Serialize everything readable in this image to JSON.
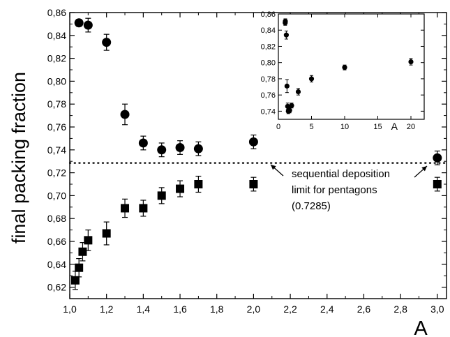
{
  "chart_data": {
    "type": "scatter",
    "xlabel": "A",
    "ylabel": "final packing fraction",
    "xlim": [
      1.0,
      3.05
    ],
    "ylim": [
      0.61,
      0.86
    ],
    "x_ticks": [
      "1,0",
      "1,2",
      "1,4",
      "1,6",
      "1,8",
      "2,0",
      "2,2",
      "2,4",
      "2,6",
      "2,8",
      "3,0"
    ],
    "y_ticks": [
      "0,62",
      "0,64",
      "0,66",
      "0,68",
      "0,70",
      "0,72",
      "0,74",
      "0,76",
      "0,78",
      "0,80",
      "0,82",
      "0,84",
      "0,86"
    ],
    "series": [
      {
        "marker": "circle",
        "points": [
          {
            "x": 1.05,
            "y": 0.851,
            "err": 0.003
          },
          {
            "x": 1.1,
            "y": 0.849,
            "err": 0.006
          },
          {
            "x": 1.2,
            "y": 0.834,
            "err": 0.007
          },
          {
            "x": 1.3,
            "y": 0.771,
            "err": 0.009
          },
          {
            "x": 1.4,
            "y": 0.746,
            "err": 0.006
          },
          {
            "x": 1.5,
            "y": 0.74,
            "err": 0.006
          },
          {
            "x": 1.6,
            "y": 0.742,
            "err": 0.006
          },
          {
            "x": 1.7,
            "y": 0.741,
            "err": 0.006
          },
          {
            "x": 2.0,
            "y": 0.747,
            "err": 0.006
          },
          {
            "x": 3.0,
            "y": 0.733,
            "err": 0.006
          }
        ]
      },
      {
        "marker": "square",
        "points": [
          {
            "x": 1.03,
            "y": 0.626,
            "err": 0.008
          },
          {
            "x": 1.05,
            "y": 0.637,
            "err": 0.008
          },
          {
            "x": 1.07,
            "y": 0.651,
            "err": 0.008
          },
          {
            "x": 1.1,
            "y": 0.661,
            "err": 0.009
          },
          {
            "x": 1.2,
            "y": 0.667,
            "err": 0.01
          },
          {
            "x": 1.3,
            "y": 0.689,
            "err": 0.008
          },
          {
            "x": 1.4,
            "y": 0.689,
            "err": 0.007
          },
          {
            "x": 1.5,
            "y": 0.7,
            "err": 0.007
          },
          {
            "x": 1.6,
            "y": 0.706,
            "err": 0.007
          },
          {
            "x": 1.7,
            "y": 0.71,
            "err": 0.007
          },
          {
            "x": 2.0,
            "y": 0.71,
            "err": 0.006
          },
          {
            "x": 3.0,
            "y": 0.71,
            "err": 0.006
          }
        ]
      }
    ],
    "reference_line": {
      "y": 0.7285,
      "style": "dotted"
    },
    "annotation": [
      "sequential deposition",
      "limit for pentagons",
      "(0.7285)"
    ],
    "inset": {
      "type": "scatter",
      "xlabel": "A",
      "xlim": [
        0,
        22
      ],
      "ylim": [
        0.73,
        0.86
      ],
      "x_ticks": [
        "0",
        "5",
        "10",
        "15",
        "20"
      ],
      "y_ticks": [
        "0,74",
        "0,76",
        "0,78",
        "0,80",
        "0,82",
        "0,84",
        "0,86"
      ],
      "points": [
        {
          "x": 1.03,
          "y": 0.849,
          "err": 0.003
        },
        {
          "x": 1.05,
          "y": 0.851,
          "err": 0.003
        },
        {
          "x": 1.2,
          "y": 0.834,
          "err": 0.005
        },
        {
          "x": 1.3,
          "y": 0.771,
          "err": 0.008
        },
        {
          "x": 1.4,
          "y": 0.746,
          "err": 0.004
        },
        {
          "x": 1.5,
          "y": 0.74,
          "err": 0.003
        },
        {
          "x": 1.6,
          "y": 0.742,
          "err": 0.003
        },
        {
          "x": 1.7,
          "y": 0.741,
          "err": 0.003
        },
        {
          "x": 2.0,
          "y": 0.747,
          "err": 0.003
        },
        {
          "x": 3.0,
          "y": 0.764,
          "err": 0.004
        },
        {
          "x": 5.0,
          "y": 0.78,
          "err": 0.004
        },
        {
          "x": 10.0,
          "y": 0.794,
          "err": 0.003
        },
        {
          "x": 20.0,
          "y": 0.801,
          "err": 0.004
        }
      ]
    }
  }
}
